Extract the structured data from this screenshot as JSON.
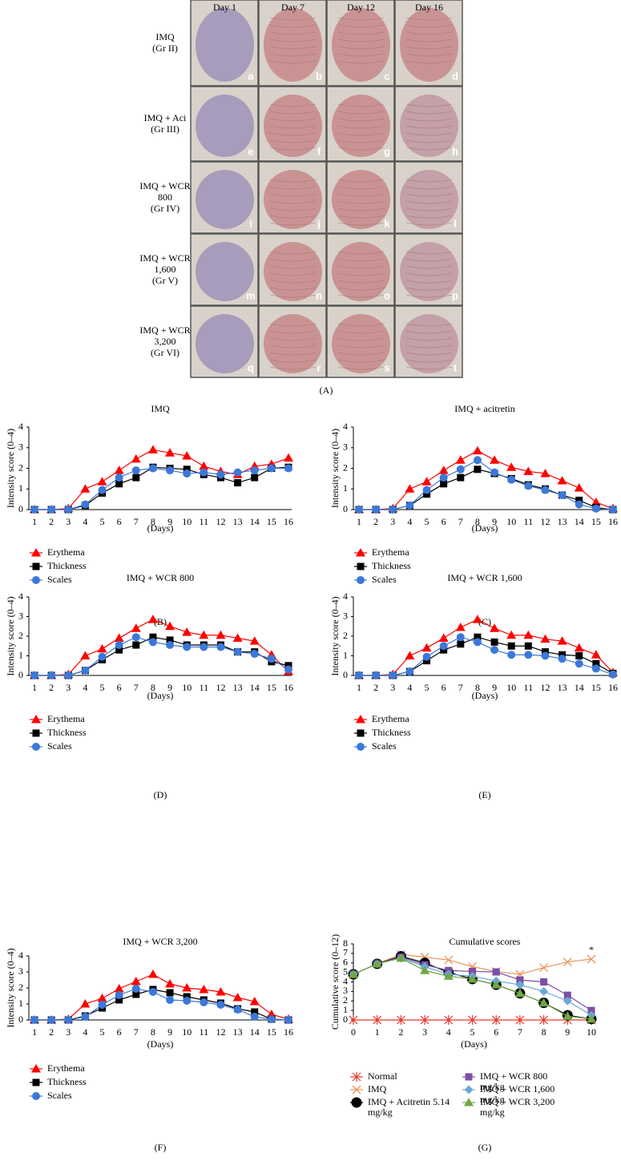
{
  "photo_panel": {
    "columns": [
      "Day 1",
      "Day 7",
      "Day 12",
      "Day 16"
    ],
    "rows": [
      {
        "label": [
          "IMQ",
          "(Gr II)"
        ],
        "panels": [
          "a",
          "b",
          "c",
          "d"
        ]
      },
      {
        "label": [
          "IMQ + Aci",
          "(Gr III)"
        ],
        "panels": [
          "e",
          "f",
          "g",
          "h"
        ]
      },
      {
        "label": [
          "IMQ + WCR",
          "800",
          "(Gr IV)"
        ],
        "panels": [
          "i",
          "j",
          "k",
          "l"
        ]
      },
      {
        "label": [
          "IMQ + WCR",
          "1,600",
          "(Gr V)"
        ],
        "panels": [
          "m",
          "n",
          "o",
          "p"
        ]
      },
      {
        "label": [
          "IMQ + WCR",
          "3,200",
          "(Gr VI)"
        ],
        "panels": [
          "q",
          "r",
          "s",
          "t"
        ]
      }
    ],
    "caption": "(A)"
  },
  "chart_data": [
    {
      "type": "line",
      "title": "IMQ",
      "caption": "(B)",
      "y_label": "Intensity score (0–4)",
      "x_label": "(Days)",
      "categories": [
        "1",
        "2",
        "3",
        "4",
        "5",
        "6",
        "7",
        "8",
        "9",
        "10",
        "11",
        "12",
        "13",
        "14",
        "15",
        "16"
      ],
      "ylim": [
        0,
        4
      ],
      "yticks": [
        0,
        1,
        2,
        3,
        4
      ],
      "series": [
        {
          "name": "Erythema",
          "color": "#ff0000",
          "marker": "triangle",
          "values": [
            0,
            0,
            0.05,
            1.0,
            1.35,
            1.9,
            2.45,
            2.9,
            2.75,
            2.6,
            2.1,
            1.85,
            1.7,
            2.1,
            2.2,
            2.5
          ]
        },
        {
          "name": "Thickness",
          "color": "#000000",
          "marker": "square",
          "values": [
            0,
            0,
            0,
            0.2,
            0.8,
            1.25,
            1.55,
            2.05,
            2.0,
            1.95,
            1.7,
            1.55,
            1.3,
            1.55,
            2.0,
            2.05
          ]
        },
        {
          "name": "Scales",
          "color": "#3c78d8",
          "marker": "circle",
          "values": [
            0,
            0,
            0,
            0.25,
            0.95,
            1.55,
            1.9,
            2.0,
            1.9,
            1.75,
            1.8,
            1.7,
            1.8,
            1.9,
            2.0,
            2.0
          ]
        }
      ]
    },
    {
      "type": "line",
      "title": "IMQ + acitretin",
      "caption": "(C)",
      "y_label": "Intensity score (0–4)",
      "x_label": "(Days)",
      "categories": [
        "1",
        "2",
        "3",
        "4",
        "5",
        "6",
        "7",
        "8",
        "9",
        "10",
        "11",
        "12",
        "13",
        "14",
        "15",
        "16"
      ],
      "ylim": [
        0,
        4
      ],
      "yticks": [
        0,
        1,
        2,
        3,
        4
      ],
      "series": [
        {
          "name": "Erythema",
          "color": "#ff0000",
          "marker": "triangle",
          "values": [
            0,
            0,
            0.05,
            1.0,
            1.35,
            1.9,
            2.4,
            2.85,
            2.4,
            2.05,
            1.85,
            1.75,
            1.4,
            1.05,
            0.35,
            0.05
          ]
        },
        {
          "name": "Thickness",
          "color": "#000000",
          "marker": "square",
          "values": [
            0,
            0,
            0,
            0.2,
            0.75,
            1.25,
            1.55,
            1.95,
            1.75,
            1.5,
            1.2,
            1.0,
            0.7,
            0.45,
            0.1,
            0
          ]
        },
        {
          "name": "Scales",
          "color": "#3c78d8",
          "marker": "circle",
          "values": [
            0,
            0,
            0,
            0.2,
            0.95,
            1.55,
            1.95,
            2.4,
            1.8,
            1.45,
            1.15,
            0.95,
            0.7,
            0.25,
            0.05,
            0
          ]
        }
      ]
    },
    {
      "type": "line",
      "title": "IMQ + WCR 800",
      "caption": "(D)",
      "y_label": "Intensity score (0–4)",
      "x_label": "(Days)",
      "categories": [
        "1",
        "2",
        "3",
        "4",
        "5",
        "6",
        "7",
        "8",
        "9",
        "10",
        "11",
        "12",
        "13",
        "14",
        "15",
        "16"
      ],
      "ylim": [
        0,
        4
      ],
      "yticks": [
        0,
        1,
        2,
        3,
        4
      ],
      "series": [
        {
          "name": "Erythema",
          "color": "#ff0000",
          "marker": "triangle",
          "values": [
            0,
            0,
            0.05,
            1.0,
            1.35,
            1.9,
            2.4,
            2.85,
            2.5,
            2.2,
            2.05,
            2.05,
            1.9,
            1.75,
            1.05,
            0.2
          ]
        },
        {
          "name": "Thickness",
          "color": "#000000",
          "marker": "square",
          "values": [
            0,
            0,
            0,
            0.25,
            0.8,
            1.3,
            1.55,
            1.95,
            1.8,
            1.55,
            1.55,
            1.55,
            1.2,
            1.2,
            0.7,
            0.5
          ]
        },
        {
          "name": "Scales",
          "color": "#3c78d8",
          "marker": "circle",
          "values": [
            0,
            0,
            0,
            0.25,
            0.95,
            1.55,
            1.95,
            1.7,
            1.55,
            1.45,
            1.45,
            1.45,
            1.2,
            1.1,
            0.85,
            0.3
          ]
        }
      ]
    },
    {
      "type": "line",
      "title": "IMQ + WCR 1,600",
      "caption": "(E)",
      "y_label": "Intensity score (0–4)",
      "x_label": "(Days)",
      "categories": [
        "1",
        "2",
        "3",
        "4",
        "5",
        "6",
        "7",
        "8",
        "9",
        "10",
        "11",
        "12",
        "13",
        "14",
        "15",
        "16"
      ],
      "ylim": [
        0,
        4
      ],
      "yticks": [
        0,
        1,
        2,
        3,
        4
      ],
      "series": [
        {
          "name": "Erythema",
          "color": "#ff0000",
          "marker": "triangle",
          "values": [
            0,
            0,
            0.05,
            1.0,
            1.4,
            1.9,
            2.45,
            2.85,
            2.4,
            2.05,
            2.05,
            1.85,
            1.75,
            1.4,
            1.05,
            0.15
          ]
        },
        {
          "name": "Thickness",
          "color": "#000000",
          "marker": "square",
          "values": [
            0,
            0,
            0,
            0.2,
            0.75,
            1.3,
            1.6,
            1.95,
            1.7,
            1.5,
            1.5,
            1.2,
            1.05,
            1.0,
            0.6,
            0.1
          ]
        },
        {
          "name": "Scales",
          "color": "#3c78d8",
          "marker": "circle",
          "values": [
            0,
            0,
            0,
            0.2,
            0.95,
            1.5,
            1.95,
            1.7,
            1.3,
            1.05,
            1.05,
            1.0,
            0.85,
            0.6,
            0.35,
            0.05
          ]
        }
      ]
    },
    {
      "type": "line",
      "title": "IMQ + WCR 3,200",
      "caption": "(F)",
      "y_label": "Intensity score (0–4)",
      "x_label": "(Days)",
      "categories": [
        "1",
        "2",
        "3",
        "4",
        "5",
        "6",
        "7",
        "8",
        "9",
        "10",
        "11",
        "12",
        "13",
        "14",
        "15",
        "16"
      ],
      "ylim": [
        0,
        4
      ],
      "yticks": [
        0,
        1,
        2,
        3,
        4
      ],
      "series": [
        {
          "name": "Erythema",
          "color": "#ff0000",
          "marker": "triangle",
          "values": [
            0,
            0,
            0.05,
            1.0,
            1.35,
            1.95,
            2.4,
            2.85,
            2.25,
            2.0,
            1.9,
            1.75,
            1.4,
            1.15,
            0.35,
            0.05
          ]
        },
        {
          "name": "Thickness",
          "color": "#000000",
          "marker": "square",
          "values": [
            0,
            0,
            0,
            0.25,
            0.75,
            1.25,
            1.6,
            1.9,
            1.7,
            1.45,
            1.25,
            1.05,
            0.7,
            0.5,
            0.05,
            0
          ]
        },
        {
          "name": "Scales",
          "color": "#3c78d8",
          "marker": "circle",
          "values": [
            0,
            0,
            0,
            0.2,
            0.95,
            1.55,
            1.95,
            1.75,
            1.25,
            1.2,
            1.1,
            0.95,
            0.65,
            0.2,
            0.05,
            0
          ]
        }
      ]
    },
    {
      "type": "line",
      "title": "Cumulative scores",
      "caption": "(G)",
      "y_label": "Cumulative score (0–12)",
      "x_label": "(Days)",
      "x": [
        0,
        1,
        2,
        3,
        4,
        5,
        6,
        7,
        8,
        9,
        10
      ],
      "xlim": [
        0,
        10
      ],
      "xticks": [
        0,
        1,
        2,
        3,
        4,
        5,
        6,
        7,
        8,
        9,
        10
      ],
      "ylim": [
        0,
        8
      ],
      "yticks": [
        0,
        1,
        2,
        3,
        4,
        5,
        6,
        7,
        8
      ],
      "annotation": "*",
      "series": [
        {
          "name": "Normal",
          "color": "#e8382b",
          "marker": "asterisk",
          "values": [
            0,
            0,
            0,
            0,
            0,
            0,
            0,
            0,
            0,
            0,
            0
          ]
        },
        {
          "name": "IMQ",
          "color": "#e8955a",
          "marker": "x",
          "values": [
            4.8,
            5.9,
            6.9,
            6.6,
            6.3,
            5.6,
            5.1,
            4.8,
            5.5,
            6.1,
            6.4
          ]
        },
        {
          "name": "IMQ + Acitretin 5.14 mg/kg",
          "color": "#000000",
          "marker": "bigcircle",
          "values": [
            4.8,
            5.9,
            6.7,
            6.0,
            5.0,
            4.3,
            3.7,
            2.8,
            1.8,
            0.5,
            0.1
          ]
        },
        {
          "name": "IMQ + WCR 800 mg/kg",
          "color": "#7b4fa6",
          "marker": "square",
          "values": [
            4.8,
            5.9,
            6.6,
            5.8,
            5.2,
            5.1,
            5.05,
            4.2,
            4.0,
            2.6,
            1.0
          ]
        },
        {
          "name": "IMQ + WCR 1,600 mg/kg",
          "color": "#6aa8d8",
          "marker": "diamond",
          "values": [
            4.8,
            5.9,
            6.5,
            5.6,
            4.8,
            4.6,
            4.1,
            3.7,
            3.0,
            2.0,
            0.5
          ]
        },
        {
          "name": "IMQ + WCR 3,200 mg/kg",
          "color": "#70a844",
          "marker": "triangle",
          "values": [
            4.8,
            5.9,
            6.5,
            5.2,
            4.6,
            4.3,
            3.7,
            2.8,
            1.8,
            0.4,
            0.1
          ]
        }
      ]
    }
  ]
}
